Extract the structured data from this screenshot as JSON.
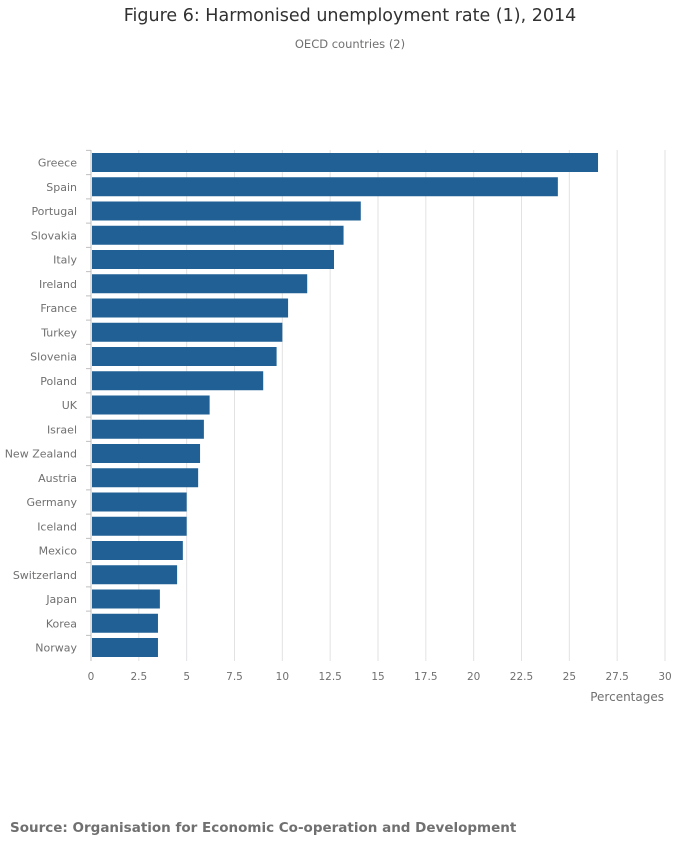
{
  "title": "Figure 6: Harmonised unemployment rate (1), 2014",
  "subtitle": "OECD countries (2)",
  "source": "Source: Organisation for Economic Co-operation and Development",
  "colors": {
    "bar": "#206095",
    "grid": "#e2e2e3",
    "axis_text": "#707071",
    "text": "#323132"
  },
  "chart_data": {
    "type": "bar",
    "orientation": "horizontal",
    "categories": [
      "Greece",
      "Spain",
      "Portugal",
      "Slovakia",
      "Italy",
      "Ireland",
      "France",
      "Turkey",
      "Slovenia",
      "Poland",
      "UK",
      "Israel",
      "New Zealand",
      "Austria",
      "Germany",
      "Iceland",
      "Mexico",
      "Switzerland",
      "Japan",
      "Korea",
      "Norway"
    ],
    "values": [
      26.5,
      24.4,
      14.1,
      13.2,
      12.7,
      11.3,
      10.3,
      10.0,
      9.7,
      9.0,
      6.2,
      5.9,
      5.7,
      5.6,
      5.0,
      5.0,
      4.8,
      4.5,
      3.6,
      3.5,
      3.5
    ],
    "xlabel": "Percentages",
    "ylabel": "",
    "xlim": [
      0,
      30
    ],
    "xticks": [
      "0",
      "2.5",
      "5",
      "7.5",
      "10",
      "12.5",
      "15",
      "17.5",
      "20",
      "22.5",
      "25",
      "27.5",
      "30"
    ],
    "grid": true,
    "legend": "none"
  }
}
